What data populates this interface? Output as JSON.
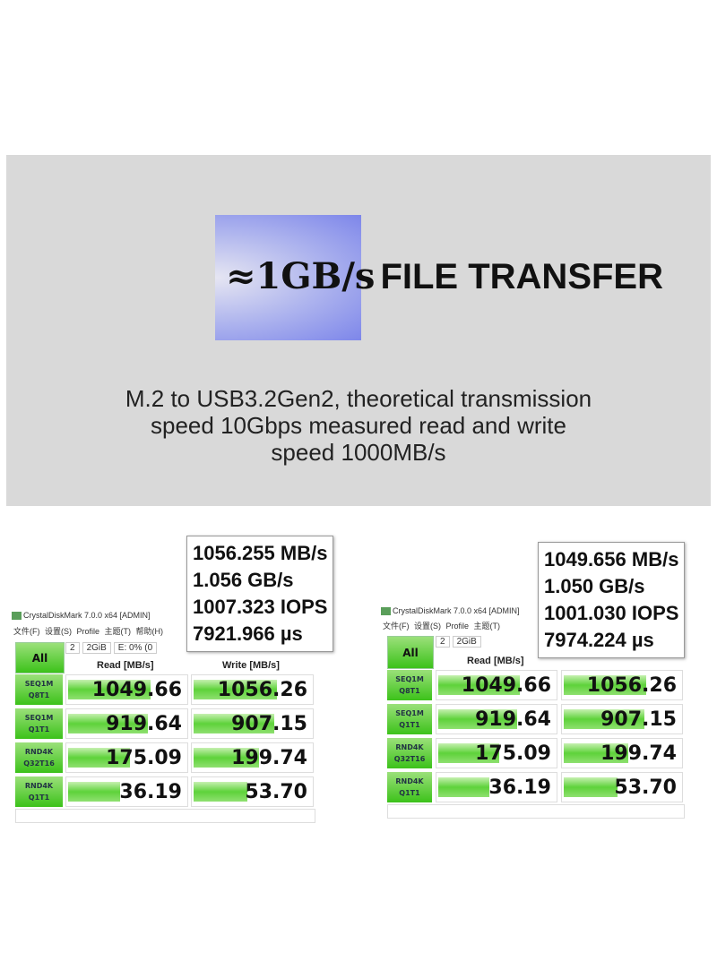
{
  "banner": {
    "title_approx": "≈1GB/s",
    "title_rest": "FILE TRANSFER",
    "subtitle": [
      "M.2 to USB3.2Gen2, theoretical transmission",
      "speed 10Gbps measured read and write",
      "speed 1000MB/s"
    ]
  },
  "panels": [
    {
      "window_title": "CrystalDiskMark 7.0.0 x64 [ADMIN]",
      "menu": "文件(F) 设置(S) Profile 主题(T) 帮助(H)",
      "all_label": "All",
      "count": "2",
      "size": "2GiB",
      "drive": "E: 0% (0",
      "read_header": "Read [MB/s]",
      "write_header": "Write [MB/s]",
      "rows": [
        {
          "l1": "SEQ1M",
          "l2": "Q8T1",
          "read": "1049.66",
          "write": "1056.26",
          "rf": 0.67,
          "wf": 0.68
        },
        {
          "l1": "SEQ1M",
          "l2": "Q1T1",
          "read": "919.64",
          "write": "907.15",
          "rf": 0.65,
          "wf": 0.66
        },
        {
          "l1": "RND4K",
          "l2": "Q32T16",
          "read": "175.09",
          "write": "199.74",
          "rf": 0.5,
          "wf": 0.53
        },
        {
          "l1": "RND4K",
          "l2": "Q1T1",
          "read": "36.19",
          "write": "53.70",
          "rf": 0.42,
          "wf": 0.44
        }
      ],
      "tooltip": [
        "1056.255 MB/s",
        "1.056 GB/s",
        "1007.323 IOPS",
        "7921.966 µs"
      ]
    },
    {
      "window_title": "CrystalDiskMark 7.0.0 x64 [ADMIN]",
      "menu": "文件(F) 设置(S) Profile 主题(T)",
      "all_label": "All",
      "count": "2",
      "size": "2GiB",
      "drive": "",
      "read_header": "Read [MB/s]",
      "write_header": "",
      "rows": [
        {
          "l1": "SEQ1M",
          "l2": "Q8T1",
          "read": "1049.66",
          "write": "1056.26",
          "rf": 0.67,
          "wf": 0.68
        },
        {
          "l1": "SEQ1M",
          "l2": "Q1T1",
          "read": "919.64",
          "write": "907.15",
          "rf": 0.65,
          "wf": 0.66
        },
        {
          "l1": "RND4K",
          "l2": "Q32T16",
          "read": "175.09",
          "write": "199.74",
          "rf": 0.5,
          "wf": 0.53
        },
        {
          "l1": "RND4K",
          "l2": "Q1T1",
          "read": "36.19",
          "write": "53.70",
          "rf": 0.42,
          "wf": 0.44
        }
      ],
      "tooltip": [
        "1049.656 MB/s",
        "1.050 GB/s",
        "1001.030 IOPS",
        "7974.224 µs"
      ]
    }
  ]
}
